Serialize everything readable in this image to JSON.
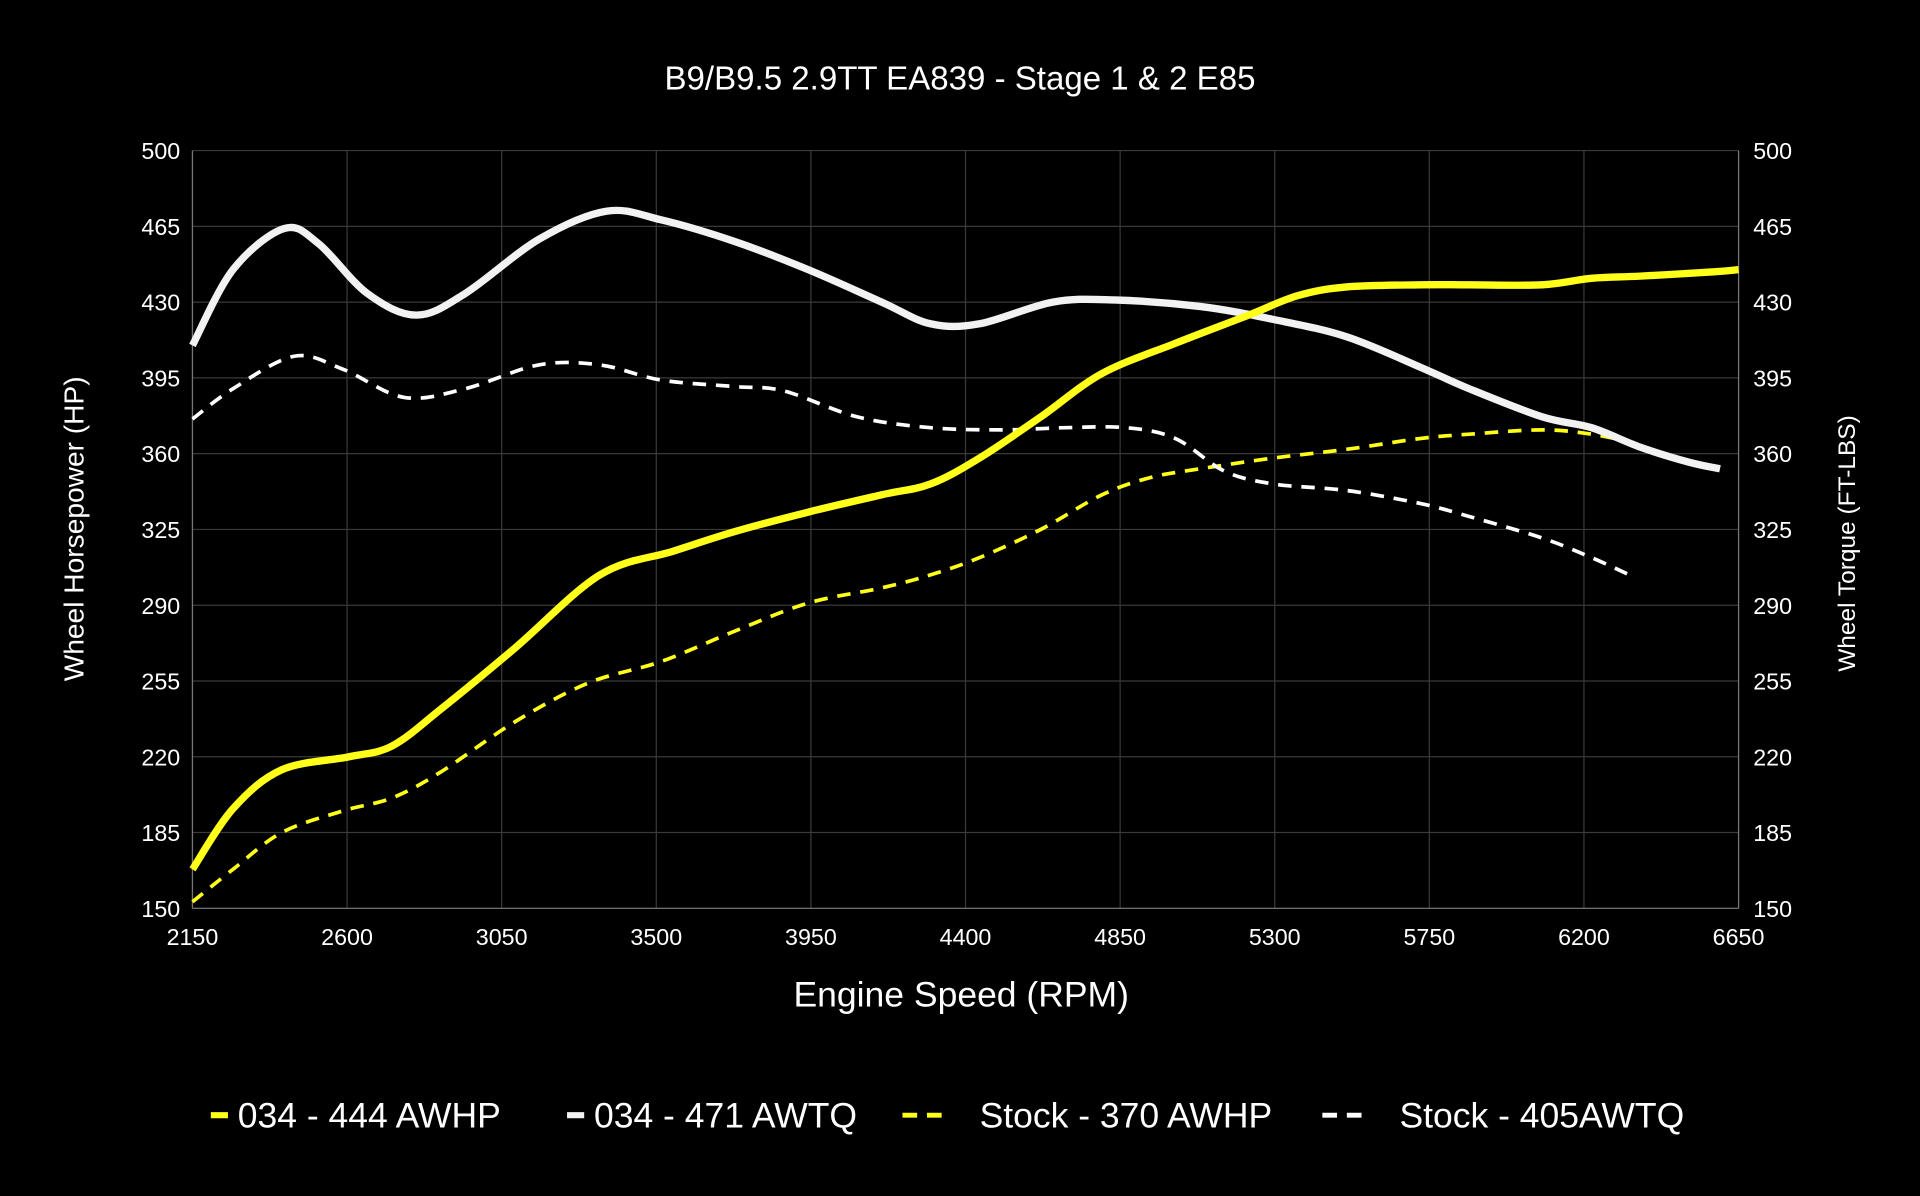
{
  "chart_data": {
    "type": "line",
    "title": "B9/B9.5 2.9TT EA839 - Stage 1 & 2 E85",
    "xlabel": "Engine Speed (RPM)",
    "ylabel": "Wheel Horsepower (HP)",
    "y2label": "Wheel Torque (FT-LBS)",
    "xlim": [
      2150,
      6650
    ],
    "ylim": [
      150,
      500
    ],
    "y2lim": [
      150,
      500
    ],
    "xticks": [
      2150,
      2600,
      3050,
      3500,
      3950,
      4400,
      4850,
      5300,
      5750,
      6200,
      6650
    ],
    "yticks": [
      150,
      185,
      220,
      255,
      290,
      325,
      360,
      395,
      430,
      465,
      500
    ],
    "grid": true,
    "legend_position": "bottom",
    "background": "#000000",
    "series": [
      {
        "name": "034 - 444 AWHP",
        "color": "#ffff1a",
        "style": "solid",
        "x": [
          2150,
          2268,
          2410,
          2606,
          2731,
          2873,
          3087,
          3336,
          3550,
          3728,
          3942,
          4156,
          4298,
          4441,
          4619,
          4797,
          5011,
          5224,
          5367,
          5509,
          5723,
          5866,
          6079,
          6222,
          6364,
          6578,
          6650
        ],
        "y": [
          168,
          196,
          214,
          220,
          225,
          242,
          270,
          304,
          315,
          324,
          333,
          341,
          346,
          358,
          377,
          397,
          411,
          424,
          433,
          437,
          438,
          438,
          438,
          441,
          442,
          444,
          445
        ]
      },
      {
        "name": "034 - 471 AWTQ",
        "color": "#f2f2f2",
        "style": "solid",
        "x": [
          2150,
          2268,
          2417,
          2517,
          2659,
          2802,
          2944,
          3158,
          3354,
          3514,
          3728,
          3942,
          4156,
          4298,
          4441,
          4654,
          4832,
          5082,
          5296,
          5509,
          5723,
          5866,
          6079,
          6222,
          6364,
          6507,
          6596
        ],
        "y": [
          410,
          445,
          464,
          457,
          434,
          424,
          434,
          459,
          472,
          468,
          458,
          445,
          430,
          420,
          420,
          430,
          431,
          428,
          422,
          414,
          400,
          390,
          377,
          372,
          363,
          356,
          353
        ]
      },
      {
        "name": "Stock - 370 AWHP",
        "color": "#ffff1a",
        "style": "dashed",
        "x": [
          2150,
          2268,
          2410,
          2588,
          2731,
          2873,
          3087,
          3301,
          3514,
          3728,
          3942,
          4156,
          4298,
          4441,
          4619,
          4797,
          4939,
          5082,
          5296,
          5509,
          5723,
          5866,
          6079,
          6222,
          6346
        ],
        "y": [
          153,
          168,
          185,
          195,
          201,
          213,
          236,
          254,
          264,
          278,
          291,
          298,
          304,
          312,
          325,
          341,
          349,
          353,
          358,
          362,
          367,
          369,
          371,
          369,
          365
        ]
      },
      {
        "name": "Stock - 405AWTQ",
        "color": "#ffffff",
        "style": "dashed",
        "x": [
          2150,
          2268,
          2446,
          2588,
          2766,
          2944,
          3158,
          3336,
          3514,
          3728,
          3871,
          4085,
          4298,
          4512,
          4690,
          4868,
          5011,
          5153,
          5296,
          5509,
          5723,
          5866,
          6079,
          6222,
          6346
        ],
        "y": [
          376,
          390,
          405,
          399,
          386,
          390,
          401,
          401,
          394,
          391,
          389,
          377,
          372,
          371,
          372,
          372,
          367,
          352,
          346,
          343,
          337,
          331,
          321,
          312,
          303
        ]
      }
    ]
  }
}
